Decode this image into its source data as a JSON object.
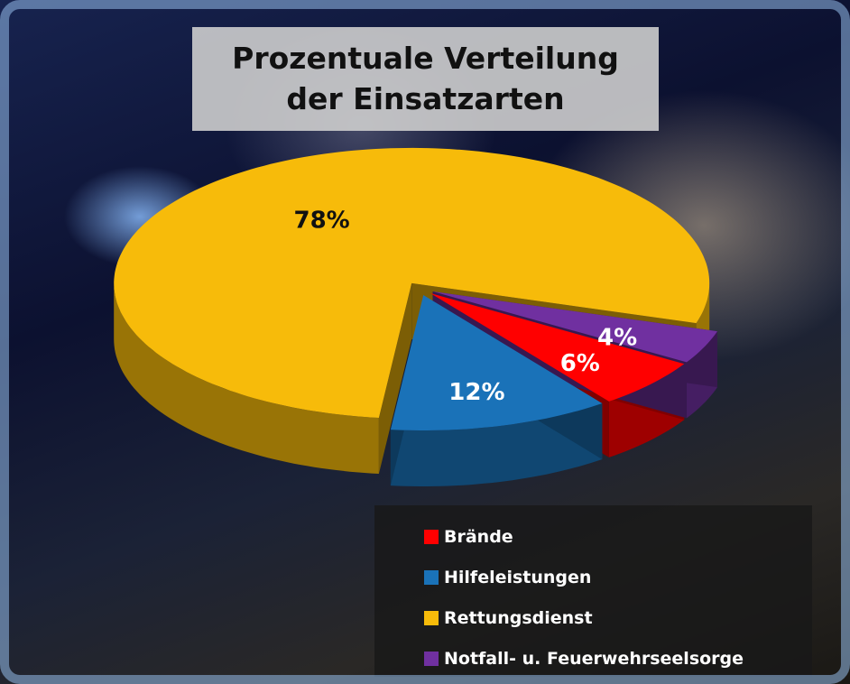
{
  "chart_data": {
    "type": "pie3d",
    "title": "Prozentuale Verteilung der Einsatzarten",
    "categories": [
      "Brände",
      "Hilfeleistungen",
      "Rettungsdienst",
      "Notfall- u. Feuerwehrseelsorge"
    ],
    "values": [
      6,
      12,
      78,
      4
    ],
    "value_labels": [
      "6%",
      "12%",
      "78%",
      "4%"
    ],
    "colors": [
      "#ff0000",
      "#1a72b8",
      "#f7bb0a",
      "#7030a0"
    ],
    "legend": "bottom-right"
  }
}
